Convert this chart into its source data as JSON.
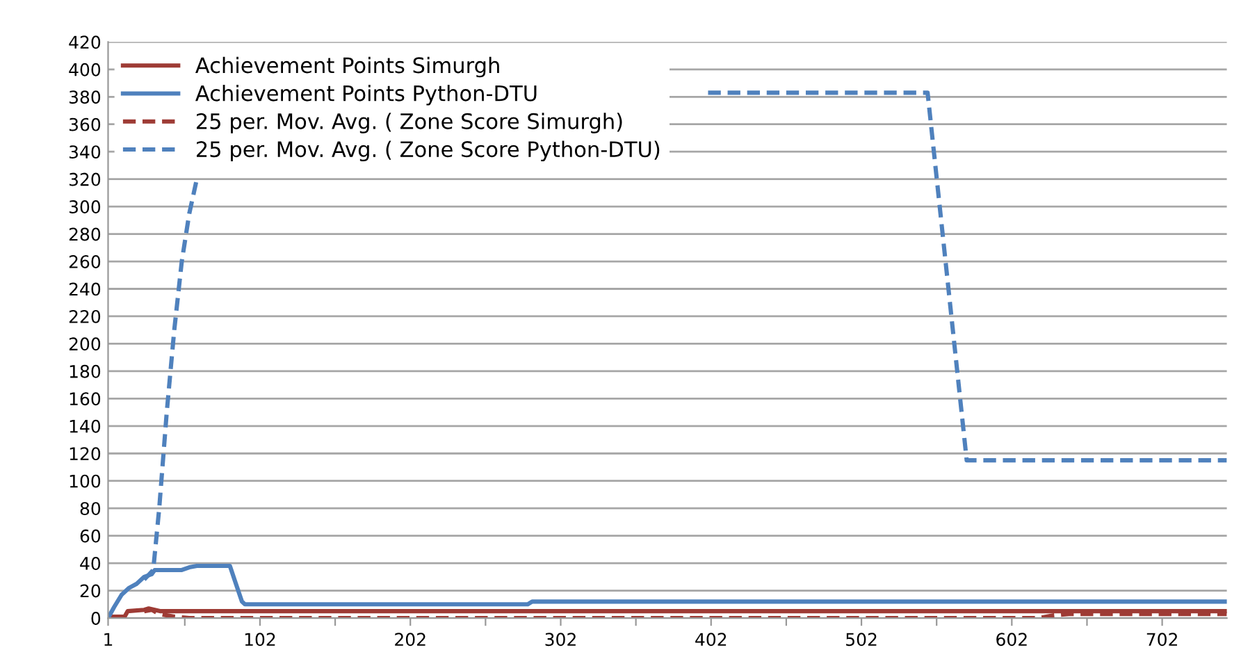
{
  "chart_data": {
    "type": "line",
    "legend": "top left",
    "grid": "y",
    "xlim": [
      1,
      745
    ],
    "ylim": [
      0,
      420
    ],
    "xticks": [
      1,
      {
        "value": 52,
        "label": null
      },
      102,
      {
        "value": 152,
        "label": null
      },
      202,
      {
        "value": 252,
        "label": null
      },
      302,
      {
        "value": 352,
        "label": null
      },
      402,
      {
        "value": 452,
        "label": null
      },
      502,
      {
        "value": 552,
        "label": null
      },
      602,
      {
        "value": 652,
        "label": null
      },
      702
    ],
    "yticks": [
      0,
      20,
      40,
      60,
      80,
      100,
      120,
      140,
      160,
      180,
      200,
      220,
      240,
      260,
      280,
      300,
      320,
      340,
      360,
      380,
      400,
      420
    ],
    "series": [
      {
        "name": "Achievement Points Simurgh",
        "color": "#9e3b35",
        "line_style": "solid",
        "x": [
          1,
          12,
          14,
          25,
          28,
          32,
          36,
          745
        ],
        "values": [
          1,
          1,
          5,
          6,
          7,
          6,
          5,
          5
        ]
      },
      {
        "name": "Achievement Points Python-DTU",
        "color": "#4f81bd",
        "line_style": "solid",
        "x": [
          1,
          5,
          10,
          15,
          20,
          25,
          30,
          32,
          50,
          55,
          60,
          82,
          86,
          90,
          92,
          280,
          283,
          745
        ],
        "values": [
          0,
          8,
          17,
          22,
          25,
          30,
          32,
          35,
          35,
          37,
          38,
          38,
          25,
          12,
          10,
          10,
          12,
          12
        ]
      },
      {
        "name": "25 per. Mov. Avg. ( Zone Score Simurgh)",
        "color": "#9e3b35",
        "line_style": "dashed",
        "x": [
          25,
          30,
          35,
          45,
          55,
          620,
          630,
          640,
          745
        ],
        "values": [
          5,
          6,
          3,
          1,
          0,
          0,
          2,
          3,
          3
        ]
      },
      {
        "name": "25 per. Mov. Avg. ( Zone Score Python-DTU)",
        "color": "#4f81bd",
        "line_style": "dashed",
        "x": [
          25,
          31,
          35,
          40,
          45,
          50,
          55,
          60,
          63,
          80,
          400,
          546,
          572,
          745
        ],
        "values": [
          28,
          35,
          80,
          150,
          210,
          260,
          295,
          320,
          null,
          null,
          383,
          383,
          115,
          115
        ]
      }
    ]
  }
}
